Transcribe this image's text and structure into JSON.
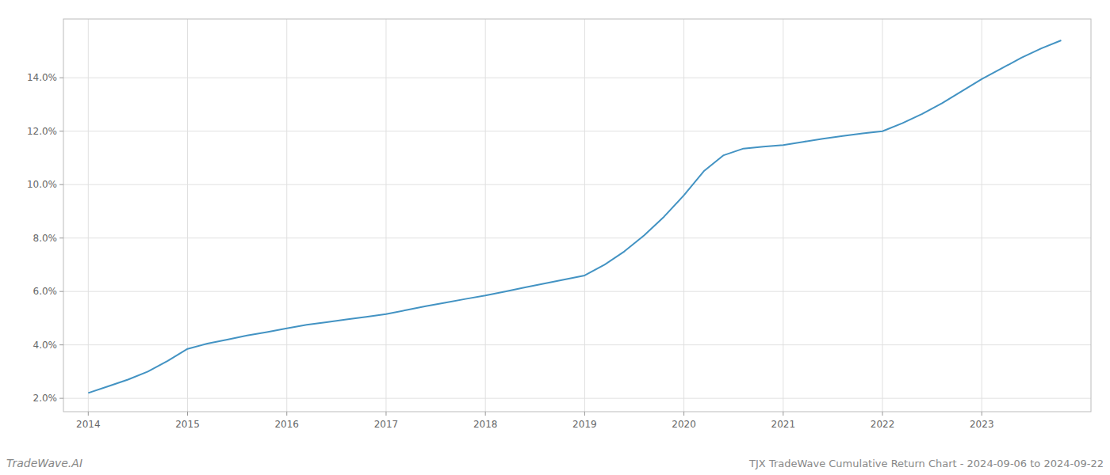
{
  "chart_data": {
    "type": "line",
    "title": "TJX TradeWave Cumulative Return Chart - 2024-09-06 to 2024-09-22",
    "annotations": [
      "TradeWave.AI"
    ],
    "x": [
      2014.0,
      2014.2,
      2014.4,
      2014.6,
      2014.8,
      2015.0,
      2015.2,
      2015.4,
      2015.6,
      2015.8,
      2016.0,
      2016.2,
      2016.4,
      2016.6,
      2016.8,
      2017.0,
      2017.2,
      2017.4,
      2017.6,
      2017.8,
      2018.0,
      2018.2,
      2018.4,
      2018.6,
      2018.8,
      2019.0,
      2019.2,
      2019.4,
      2019.6,
      2019.8,
      2020.0,
      2020.2,
      2020.4,
      2020.6,
      2020.8,
      2021.0,
      2021.2,
      2021.4,
      2021.6,
      2021.8,
      2022.0,
      2022.2,
      2022.4,
      2022.6,
      2022.8,
      2023.0,
      2023.2,
      2023.4,
      2023.6,
      2023.8
    ],
    "values": [
      2.2,
      2.45,
      2.7,
      3.0,
      3.4,
      3.85,
      4.05,
      4.2,
      4.35,
      4.48,
      4.62,
      4.75,
      4.85,
      4.95,
      5.05,
      5.15,
      5.3,
      5.45,
      5.58,
      5.72,
      5.85,
      6.0,
      6.15,
      6.3,
      6.45,
      6.6,
      7.0,
      7.5,
      8.1,
      8.8,
      9.6,
      10.5,
      11.1,
      11.35,
      11.42,
      11.48,
      11.6,
      11.72,
      11.82,
      11.92,
      12.0,
      12.3,
      12.65,
      13.05,
      13.5,
      13.95,
      14.35,
      14.75,
      15.1,
      15.4
    ],
    "color": "#4393c3",
    "xlim": [
      2013.75,
      2024.1
    ],
    "ylim": [
      1.5,
      16.2
    ],
    "xticks": [
      2014,
      2015,
      2016,
      2017,
      2018,
      2019,
      2020,
      2021,
      2022,
      2023
    ],
    "yticks": [
      {
        "value": 2.0,
        "label": "2.0%"
      },
      {
        "value": 4.0,
        "label": "4.0%"
      },
      {
        "value": 6.0,
        "label": "6.0%"
      },
      {
        "value": 8.0,
        "label": "8.0%"
      },
      {
        "value": 10.0,
        "label": "10.0%"
      },
      {
        "value": 12.0,
        "label": "12.0%"
      },
      {
        "value": 14.0,
        "label": "14.0%"
      }
    ],
    "grid": true
  }
}
